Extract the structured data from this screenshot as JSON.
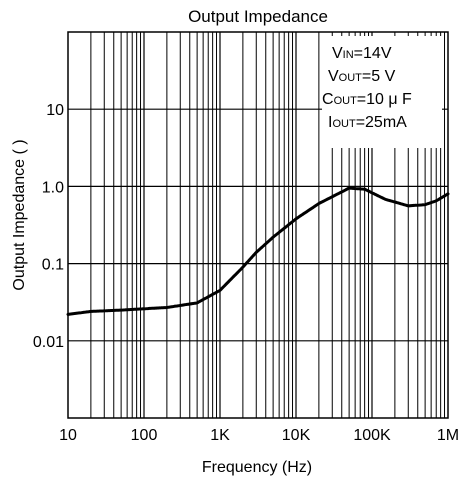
{
  "chart_data": {
    "type": "line",
    "title": "Output Impedance",
    "xlabel": "Frequency (Hz)",
    "ylabel": "Output Impedance (   )",
    "x_scale": "log",
    "y_scale": "log",
    "xlim": [
      10,
      1000000
    ],
    "ylim": [
      0.001,
      100
    ],
    "x_ticks": [
      {
        "value": 10,
        "label": "10"
      },
      {
        "value": 100,
        "label": "100"
      },
      {
        "value": 1000,
        "label": "1K"
      },
      {
        "value": 10000,
        "label": "10K"
      },
      {
        "value": 100000,
        "label": "100K"
      },
      {
        "value": 1000000,
        "label": "1M"
      }
    ],
    "y_ticks": [
      {
        "value": 10,
        "label": "10"
      },
      {
        "value": 1,
        "label": "1.0"
      },
      {
        "value": 0.1,
        "label": "0.1"
      },
      {
        "value": 0.01,
        "label": "0.01"
      }
    ],
    "grid": true,
    "annotations": [
      {
        "main": "V",
        "sub": "IN",
        "rest": "=14V"
      },
      {
        "main": "V",
        "sub": "OUT",
        "rest": "=5 V"
      },
      {
        "main": "C",
        "sub": "OUT",
        "rest": "=10 μ F"
      },
      {
        "main": "I",
        "sub": "OUT",
        "rest": "=25mA"
      }
    ],
    "series": [
      {
        "x": [
          10,
          20,
          50,
          100,
          200,
          500,
          1000,
          2000,
          3000,
          5000,
          10000,
          20000,
          50000,
          80000,
          150000,
          300000,
          500000,
          700000,
          1000000
        ],
        "y": [
          0.022,
          0.024,
          0.025,
          0.026,
          0.027,
          0.031,
          0.045,
          0.09,
          0.14,
          0.22,
          0.38,
          0.6,
          0.95,
          0.92,
          0.68,
          0.56,
          0.58,
          0.65,
          0.8
        ]
      }
    ]
  }
}
